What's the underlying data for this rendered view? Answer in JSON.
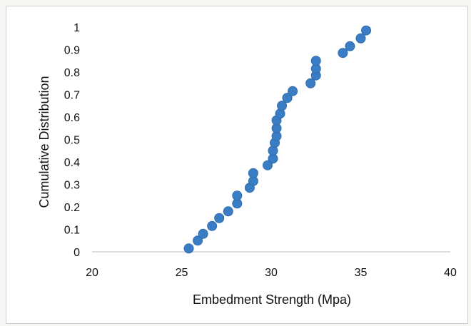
{
  "chart_data": {
    "type": "scatter",
    "xlabel": "Embedment Strength (Mpa)",
    "ylabel": "Cumulative Distribution",
    "xlim": [
      20,
      40
    ],
    "ylim": [
      0,
      1
    ],
    "xticks": [
      "20",
      "25",
      "30",
      "35",
      "40"
    ],
    "yticks": [
      "0",
      "0.1",
      "0.2",
      "0.3",
      "0.4",
      "0.5",
      "0.6",
      "0.7",
      "0.8",
      "0.9",
      "1"
    ],
    "grid": false,
    "legend": "none",
    "marker_color": "#3b7dc4",
    "series": [
      {
        "x": [
          25.4,
          25.9,
          26.2,
          26.7,
          27.1,
          27.6,
          28.1,
          28.1,
          28.8,
          29.0,
          29.0,
          29.8,
          30.1,
          30.1,
          30.2,
          30.3,
          30.3,
          30.3,
          30.5,
          30.6,
          30.9,
          30.9,
          31.2,
          32.2,
          32.5,
          32.5,
          32.5,
          34.0,
          34.4,
          35.0,
          35.3
        ],
        "y": [
          0.015,
          0.05,
          0.08,
          0.115,
          0.15,
          0.18,
          0.215,
          0.25,
          0.285,
          0.315,
          0.35,
          0.385,
          0.415,
          0.45,
          0.485,
          0.515,
          0.55,
          0.585,
          0.615,
          0.65,
          0.685,
          0.685,
          0.715,
          0.75,
          0.785,
          0.815,
          0.85,
          0.885,
          0.915,
          0.95,
          0.985
        ]
      }
    ]
  }
}
